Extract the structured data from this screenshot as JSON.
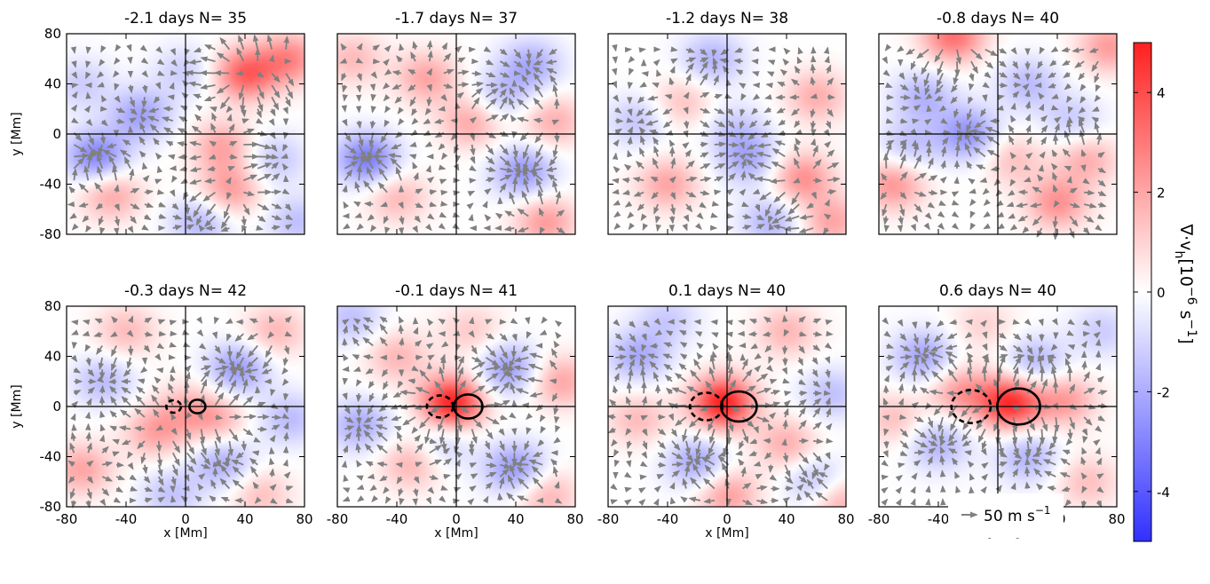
{
  "chart_data": {
    "type": "heatmap",
    "description_kind": "multi-panel map with flow arrows",
    "xlabel": "x [Mm]",
    "ylabel": "y [Mm]",
    "xlim": [
      -80,
      80
    ],
    "ylim": [
      -80,
      80
    ],
    "xticks": [
      -80,
      -40,
      0,
      40,
      80
    ],
    "yticks": [
      -80,
      -40,
      0,
      40,
      80
    ],
    "xtick_labels": [
      "-80",
      "-40",
      "0",
      "40",
      "80"
    ],
    "ytick_labels": [
      "-80",
      "-40",
      "0",
      "40",
      "80"
    ],
    "colorbar": {
      "label": "∇·v_h [10^-6 s^-1]",
      "label_main": "∇·v",
      "label_sub": "h",
      "label_units": "[10",
      "label_exp": "−6",
      "label_s": " s",
      "label_sexp": "−1",
      "label_end": "]",
      "range": [
        -5,
        5
      ],
      "ticks": [
        4,
        2,
        0,
        -2,
        -4
      ],
      "tick_labels": [
        "4",
        "2",
        "0",
        "-2",
        "-4"
      ],
      "colors": {
        "negative": "#3030ff",
        "zero": "#ffffff",
        "positive": "#ff2020"
      }
    },
    "reference_arrow": {
      "value": 50,
      "label": "50 m s",
      "exp": "−1"
    },
    "arrow_color": "#808080",
    "panels": [
      {
        "time_days": -2.1,
        "N": 35,
        "title": "-2.1 days  N= 35",
        "features": [
          {
            "x": 40,
            "y": 48,
            "v": 3.5
          },
          {
            "x": -60,
            "y": -18,
            "v": -3.0
          },
          {
            "x": -30,
            "y": 15,
            "v": -2.2
          },
          {
            "x": -50,
            "y": -48,
            "v": 2.0
          },
          {
            "x": 25,
            "y": -10,
            "v": 2.0
          },
          {
            "x": 30,
            "y": -45,
            "v": 2.2
          },
          {
            "x": 70,
            "y": 60,
            "v": 2.6
          },
          {
            "x": 10,
            "y": -70,
            "v": -1.8
          },
          {
            "x": -70,
            "y": 40,
            "v": -1.2
          },
          {
            "x": 60,
            "y": -20,
            "v": -1.4
          },
          {
            "x": 0,
            "y": 50,
            "v": -1.2
          },
          {
            "x": 75,
            "y": -70,
            "v": -1.5
          }
        ]
      },
      {
        "time_days": -1.7,
        "N": 37,
        "title": "-1.7 days  N= 37",
        "features": [
          {
            "x": -60,
            "y": -20,
            "v": -3.2
          },
          {
            "x": 10,
            "y": 10,
            "v": 2.0
          },
          {
            "x": 45,
            "y": -30,
            "v": -2.5
          },
          {
            "x": -20,
            "y": 45,
            "v": 2.0
          },
          {
            "x": 60,
            "y": -70,
            "v": 2.2
          },
          {
            "x": 50,
            "y": 55,
            "v": -2.0
          },
          {
            "x": -40,
            "y": -50,
            "v": 1.6
          },
          {
            "x": 30,
            "y": 30,
            "v": -1.5
          },
          {
            "x": -70,
            "y": 60,
            "v": 1.5
          },
          {
            "x": 65,
            "y": 10,
            "v": 1.8
          }
        ]
      },
      {
        "time_days": -1.2,
        "N": 38,
        "title": "-1.2 days  N= 38",
        "features": [
          {
            "x": 50,
            "y": -35,
            "v": 2.5
          },
          {
            "x": 15,
            "y": -20,
            "v": -2.0
          },
          {
            "x": -40,
            "y": -40,
            "v": 2.0
          },
          {
            "x": -10,
            "y": 60,
            "v": -1.8
          },
          {
            "x": 60,
            "y": 30,
            "v": 1.8
          },
          {
            "x": -60,
            "y": 10,
            "v": -1.4
          },
          {
            "x": 30,
            "y": -70,
            "v": -1.8
          },
          {
            "x": -30,
            "y": 25,
            "v": 1.4
          },
          {
            "x": 70,
            "y": -70,
            "v": 2.0
          },
          {
            "x": 5,
            "y": 5,
            "v": -1.2
          }
        ]
      },
      {
        "time_days": -0.8,
        "N": 40,
        "title": "-0.8 days  N= 40",
        "features": [
          {
            "x": -30,
            "y": 78,
            "v": 3.2
          },
          {
            "x": -20,
            "y": 0,
            "v": -2.6
          },
          {
            "x": -70,
            "y": -40,
            "v": 2.4
          },
          {
            "x": 40,
            "y": -55,
            "v": 2.4
          },
          {
            "x": -50,
            "y": 30,
            "v": -1.8
          },
          {
            "x": 20,
            "y": 40,
            "v": -1.6
          },
          {
            "x": 60,
            "y": -20,
            "v": 1.8
          },
          {
            "x": 75,
            "y": 70,
            "v": 2.2
          },
          {
            "x": -60,
            "y": -10,
            "v": -1.5
          },
          {
            "x": 10,
            "y": -20,
            "v": 1.4
          },
          {
            "x": 50,
            "y": 10,
            "v": -1.3
          }
        ]
      },
      {
        "time_days": -0.3,
        "N": 42,
        "title": "-0.3 days  N= 42",
        "features": [
          {
            "x": 35,
            "y": 30,
            "v": -2.4
          },
          {
            "x": 20,
            "y": -10,
            "v": 1.8
          },
          {
            "x": -55,
            "y": 20,
            "v": -1.6
          },
          {
            "x": -20,
            "y": -20,
            "v": 2.0
          },
          {
            "x": 25,
            "y": -45,
            "v": -2.0
          },
          {
            "x": -70,
            "y": -50,
            "v": 2.0
          },
          {
            "x": 60,
            "y": 60,
            "v": 1.6
          },
          {
            "x": -40,
            "y": 60,
            "v": 1.5
          },
          {
            "x": 70,
            "y": -10,
            "v": -1.6
          },
          {
            "x": -10,
            "y": -70,
            "v": -1.4
          },
          {
            "x": 50,
            "y": -70,
            "v": 1.4
          },
          {
            "x": 0,
            "y": 0,
            "v": 1.2
          }
        ]
      },
      {
        "time_days": -0.1,
        "N": 41,
        "title": "-0.1 days  N= 41",
        "features": [
          {
            "x": -3,
            "y": 3,
            "v": 5.0
          },
          {
            "x": 35,
            "y": 30,
            "v": -2.4
          },
          {
            "x": 40,
            "y": -50,
            "v": -2.6
          },
          {
            "x": -65,
            "y": -15,
            "v": -2.0
          },
          {
            "x": -30,
            "y": -45,
            "v": 1.8
          },
          {
            "x": -40,
            "y": 40,
            "v": 1.6
          },
          {
            "x": 70,
            "y": 20,
            "v": 2.0
          },
          {
            "x": 60,
            "y": -70,
            "v": 1.8
          },
          {
            "x": -70,
            "y": 70,
            "v": -1.5
          },
          {
            "x": 10,
            "y": 60,
            "v": 1.2
          },
          {
            "x": -10,
            "y": -30,
            "v": -1.4
          }
        ]
      },
      {
        "time_days": 0.1,
        "N": 40,
        "title": "0.1 days  N= 40",
        "features": [
          {
            "x": -3,
            "y": 3,
            "v": 5.0
          },
          {
            "x": -60,
            "y": 40,
            "v": -2.0
          },
          {
            "x": -20,
            "y": -45,
            "v": -2.2
          },
          {
            "x": 40,
            "y": -30,
            "v": 1.8
          },
          {
            "x": 60,
            "y": -60,
            "v": -1.8
          },
          {
            "x": 0,
            "y": -70,
            "v": 2.2
          },
          {
            "x": -60,
            "y": -10,
            "v": 1.5
          },
          {
            "x": 40,
            "y": 60,
            "v": 1.6
          },
          {
            "x": 70,
            "y": 10,
            "v": -1.5
          },
          {
            "x": -40,
            "y": 70,
            "v": -1.2
          },
          {
            "x": 75,
            "y": -75,
            "v": 2.0
          }
        ]
      },
      {
        "time_days": 0.6,
        "N": 40,
        "title": "0.6 days  N= 40",
        "features": [
          {
            "x": 8,
            "y": 3,
            "v": 4.6
          },
          {
            "x": -25,
            "y": 12,
            "v": 2.2
          },
          {
            "x": -50,
            "y": 40,
            "v": -2.2
          },
          {
            "x": -40,
            "y": -30,
            "v": -1.8
          },
          {
            "x": 45,
            "y": 5,
            "v": 2.2
          },
          {
            "x": 25,
            "y": 35,
            "v": -1.8
          },
          {
            "x": 20,
            "y": -40,
            "v": -1.8
          },
          {
            "x": -70,
            "y": -10,
            "v": 1.4
          },
          {
            "x": 60,
            "y": -60,
            "v": 1.4
          },
          {
            "x": 70,
            "y": 60,
            "v": -1.2
          },
          {
            "x": -10,
            "y": 65,
            "v": 1.0
          }
        ]
      }
    ]
  }
}
